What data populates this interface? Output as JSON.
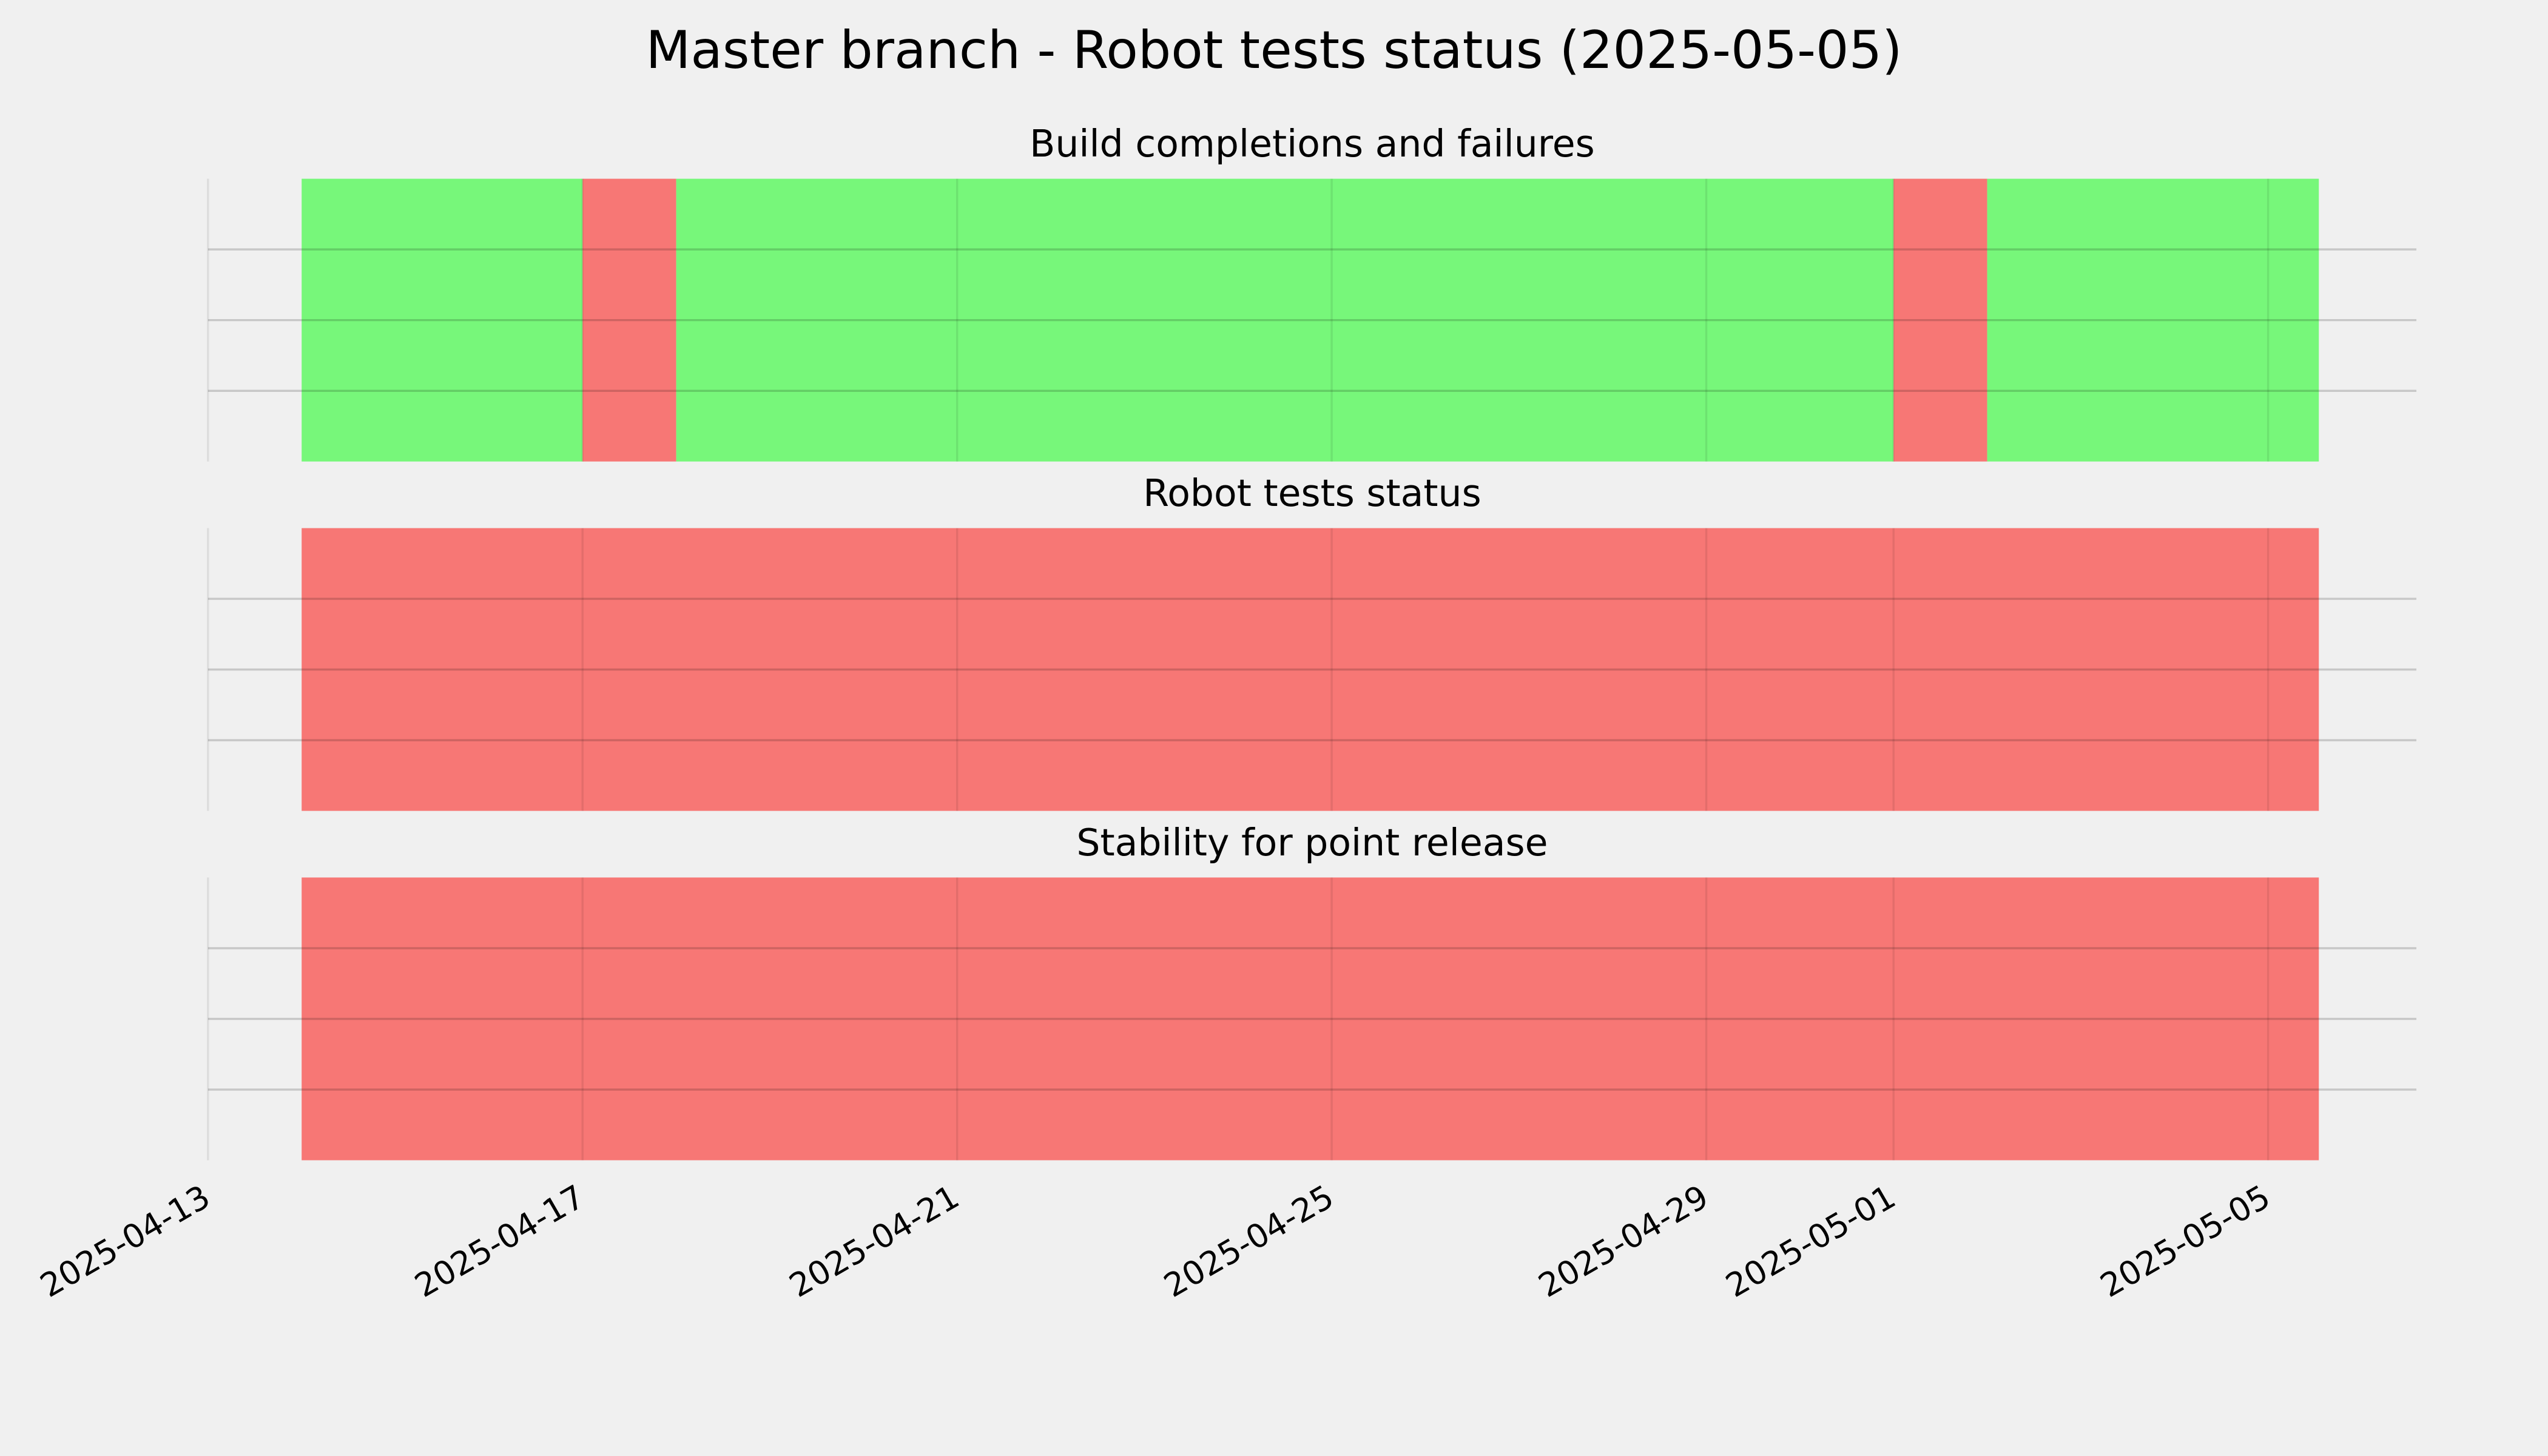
{
  "title": "Master branch - Robot tests status (2025-05-05)",
  "chart_data": [
    {
      "type": "timeline",
      "title": "Build completions and failures",
      "xlim": [
        "2025-04-13T00:00:00Z",
        "2025-05-06T14:00:00Z"
      ],
      "ylim": [
        0,
        1
      ],
      "yticks": [
        0.25,
        0.5,
        0.75
      ],
      "xticks": [
        "2025-04-13",
        "2025-04-17",
        "2025-04-21",
        "2025-04-25",
        "2025-04-29",
        "2025-05-01",
        "2025-05-05"
      ],
      "grid": true,
      "spans": [
        {
          "start": "2025-04-14T00:00:00Z",
          "end": "2025-04-17T00:00:00Z",
          "color": "#77f77a"
        },
        {
          "start": "2025-04-17T00:00:00Z",
          "end": "2025-04-18T00:00:00Z",
          "color": "#f77775"
        },
        {
          "start": "2025-04-18T00:00:00Z",
          "end": "2025-05-01T00:00:00Z",
          "color": "#77f77a"
        },
        {
          "start": "2025-05-01T00:00:00Z",
          "end": "2025-05-02T00:00:00Z",
          "color": "#f77775"
        },
        {
          "start": "2025-05-02T00:00:00Z",
          "end": "2025-05-05T13:00:00Z",
          "color": "#77f77a"
        }
      ]
    },
    {
      "type": "timeline",
      "title": "Robot tests status",
      "xlim": [
        "2025-04-13T00:00:00Z",
        "2025-05-06T14:00:00Z"
      ],
      "ylim": [
        0,
        1
      ],
      "yticks": [
        0.25,
        0.5,
        0.75
      ],
      "xticks": [
        "2025-04-13",
        "2025-04-17",
        "2025-04-21",
        "2025-04-25",
        "2025-04-29",
        "2025-05-01",
        "2025-05-05"
      ],
      "grid": true,
      "spans": [
        {
          "start": "2025-04-14T00:00:00Z",
          "end": "2025-05-05T13:00:00Z",
          "color": "#f77775"
        }
      ]
    },
    {
      "type": "timeline",
      "title": "Stability for point release",
      "xlim": [
        "2025-04-13T00:00:00Z",
        "2025-05-06T14:00:00Z"
      ],
      "ylim": [
        0,
        1
      ],
      "yticks": [
        0.25,
        0.5,
        0.75
      ],
      "xticks": [
        "2025-04-13",
        "2025-04-17",
        "2025-04-21",
        "2025-04-25",
        "2025-04-29",
        "2025-05-01",
        "2025-05-05"
      ],
      "grid": true,
      "spans": [
        {
          "start": "2025-04-14T00:00:00Z",
          "end": "2025-05-05T13:00:00Z",
          "color": "#f77775"
        }
      ]
    }
  ]
}
